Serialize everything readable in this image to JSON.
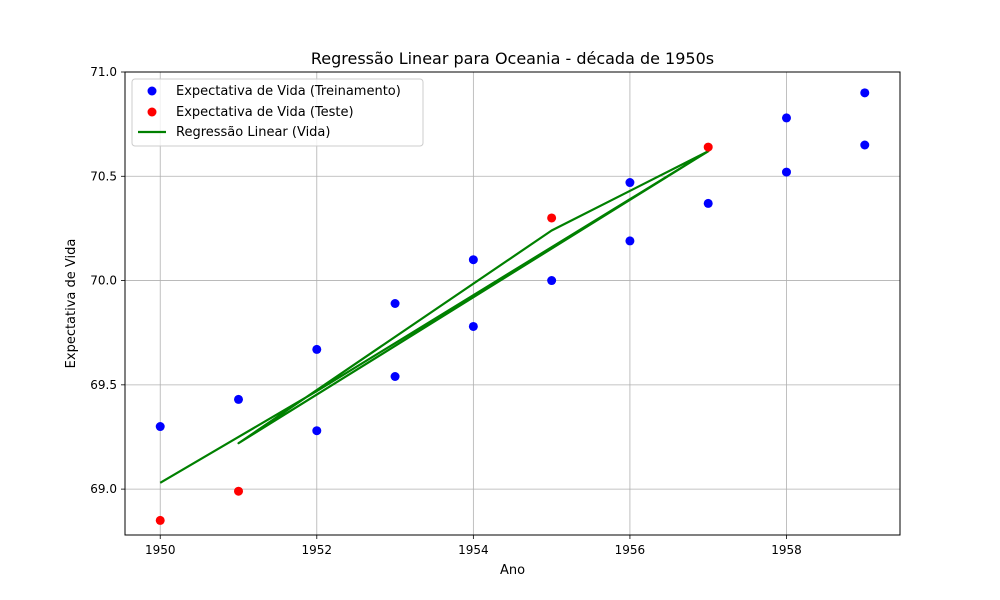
{
  "chart_data": {
    "type": "scatter",
    "title": "Regressão Linear para Oceania - década de 1950s",
    "xlabel": "Ano",
    "ylabel": "Expectativa de Vida",
    "xlim": [
      1949.55,
      1959.45
    ],
    "ylim": [
      68.78,
      71.0
    ],
    "xticks": [
      1950,
      1952,
      1954,
      1956,
      1958
    ],
    "yticks": [
      69.0,
      69.5,
      70.0,
      70.5,
      71.0
    ],
    "xtick_labels": [
      "1950",
      "1952",
      "1954",
      "1956",
      "1958"
    ],
    "ytick_labels": [
      "69.0",
      "69.5",
      "70.0",
      "70.5",
      "71.0"
    ],
    "grid": true,
    "legend_position": "top-left",
    "series": [
      {
        "name": "Expectativa de Vida (Treinamento)",
        "kind": "scatter",
        "color": "#0000ff",
        "x": [
          1950,
          1951,
          1952,
          1952,
          1953,
          1953,
          1954,
          1954,
          1955,
          1956,
          1956,
          1957,
          1958,
          1958,
          1959,
          1959
        ],
        "y": [
          69.3,
          69.43,
          69.67,
          69.28,
          69.89,
          69.54,
          70.1,
          69.78,
          70.0,
          70.47,
          70.19,
          70.37,
          70.78,
          70.52,
          70.9,
          70.65
        ]
      },
      {
        "name": "Expectativa de Vida (Teste)",
        "kind": "scatter",
        "color": "#ff0000",
        "x": [
          1950,
          1951,
          1955,
          1957
        ],
        "y": [
          68.85,
          68.99,
          70.3,
          70.64
        ]
      },
      {
        "name": "Regressão Linear (Vida)",
        "kind": "line",
        "color": "#008000",
        "x": [
          1950,
          1951,
          1952,
          1952,
          1953,
          1953,
          1954,
          1954,
          1955,
          1956,
          1956,
          1957,
          1951,
          1955,
          1957
        ],
        "y": [
          69.03,
          69.25,
          69.47,
          69.47,
          69.7,
          69.7,
          69.93,
          69.93,
          70.16,
          70.39,
          70.39,
          70.62,
          69.22,
          70.24,
          70.62
        ]
      }
    ]
  }
}
